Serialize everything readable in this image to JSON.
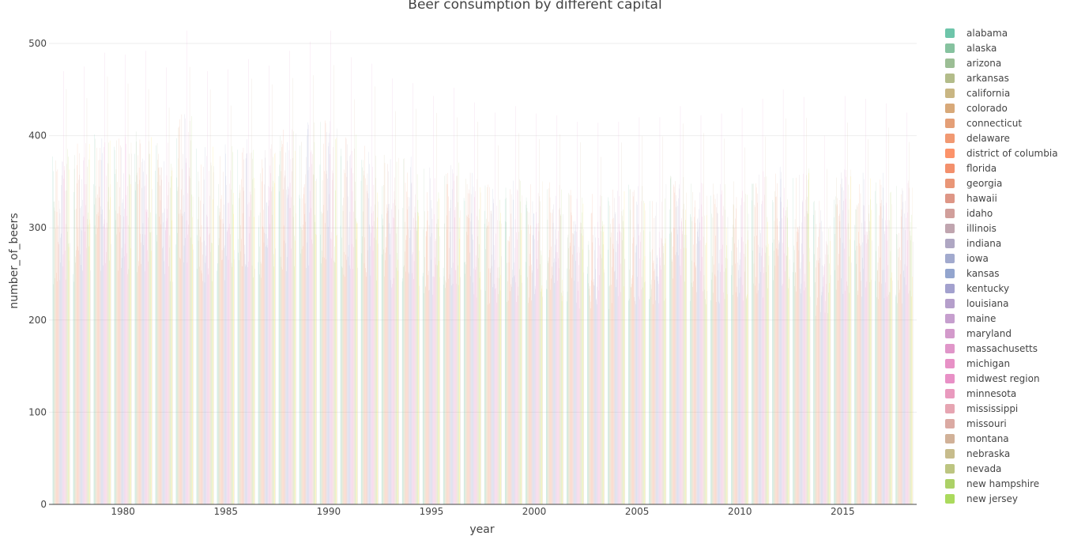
{
  "chart_data": {
    "type": "bar",
    "title": "Beer consumption by different capital",
    "xlabel": "year",
    "ylabel": "number_of_beers",
    "xlim": [
      1976.4,
      2018.6
    ],
    "ylim": [
      0,
      530
    ],
    "x_ticks": [
      1980,
      1985,
      1990,
      1995,
      2000,
      2005,
      2010,
      2015
    ],
    "y_ticks": [
      0,
      100,
      200,
      300,
      400,
      500
    ],
    "grid": true,
    "barmode": "group",
    "years": [
      1977,
      1978,
      1979,
      1980,
      1981,
      1982,
      1983,
      1984,
      1985,
      1986,
      1987,
      1988,
      1989,
      1990,
      1991,
      1992,
      1993,
      1994,
      1995,
      1996,
      1997,
      1998,
      1999,
      2000,
      2001,
      2002,
      2003,
      2004,
      2005,
      2006,
      2007,
      2008,
      2009,
      2010,
      2011,
      2012,
      2013,
      2014,
      2015,
      2016,
      2017,
      2018
    ],
    "year_peaks": [
      470,
      475,
      490,
      488,
      492,
      474,
      514,
      470,
      472,
      483,
      476,
      492,
      502,
      514,
      485,
      478,
      462,
      457,
      443,
      452,
      436,
      425,
      432,
      424,
      422,
      415,
      414,
      415,
      420,
      420,
      432,
      422,
      424,
      430,
      440,
      450,
      442,
      400,
      443,
      440,
      435,
      425
    ],
    "legend_position": "right",
    "legend_entries": [
      "alabama",
      "alaska",
      "arizona",
      "arkansas",
      "california",
      "colorado",
      "connecticut",
      "delaware",
      "district of columbia",
      "florida",
      "georgia",
      "hawaii",
      "idaho",
      "illinois",
      "indiana",
      "iowa",
      "kansas",
      "kentucky",
      "louisiana",
      "maine",
      "maryland",
      "massachusetts",
      "michigan",
      "midwest region",
      "minnesota",
      "mississippi",
      "missouri",
      "montana",
      "nebraska",
      "nevada",
      "new hampshire",
      "new jersey"
    ],
    "legend_colors": [
      "#66c2a5",
      "#7fbf9a",
      "#97bb8f",
      "#afb884",
      "#c6b27c",
      "#d6a472",
      "#e39a70",
      "#f0946a",
      "#fc8d62",
      "#f28a64",
      "#e89070",
      "#dc9080",
      "#cf9a96",
      "#bda0ab",
      "#aba2c0",
      "#9da5cb",
      "#8da0cb",
      "#9e9ccb",
      "#b19ac8",
      "#c39acb",
      "#d195c8",
      "#de90c6",
      "#e68bc3",
      "#e78ac3",
      "#e895bb",
      "#e5a0ae",
      "#d9a59e",
      "#cfad92",
      "#c4b886",
      "#b9c27a",
      "#a8cf5f",
      "#a6d854"
    ],
    "background_series_colors": [
      "#ffd92f",
      "#e5c494",
      "#b3b3b3"
    ]
  }
}
